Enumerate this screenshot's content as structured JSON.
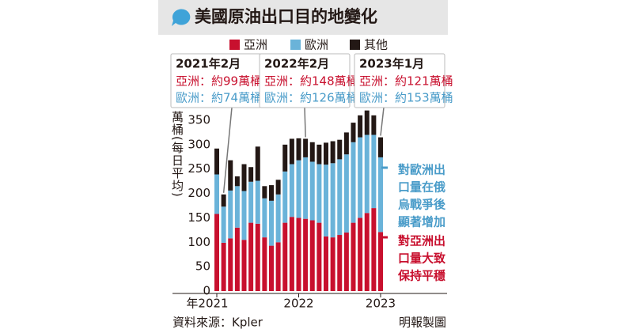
{
  "chart_data": {
    "type": "stacked-bar",
    "title": "美國原油出口目的地變化",
    "y_label": "萬桶(每日平均)",
    "categories": [
      "年2021",
      null,
      null,
      null,
      null,
      null,
      null,
      null,
      null,
      null,
      null,
      null,
      "2022",
      null,
      null,
      null,
      null,
      null,
      null,
      null,
      null,
      null,
      null,
      null,
      "2023"
    ],
    "series": [
      {
        "name": "亞洲",
        "color": "#c8102e",
        "values": [
          158,
          99,
          108,
          130,
          105,
          140,
          138,
          110,
          93,
          100,
          140,
          152,
          150,
          148,
          145,
          140,
          112,
          110,
          115,
          120,
          140,
          150,
          160,
          170,
          121
        ]
      },
      {
        "name": "歐洲",
        "color": "#6ab3d9",
        "values": [
          81,
          74,
          98,
          85,
          100,
          84,
          88,
          80,
          92,
          98,
          105,
          108,
          118,
          126,
          120,
          120,
          147,
          152,
          155,
          160,
          165,
          165,
          160,
          150,
          153
        ]
      },
      {
        "name": "其他",
        "color": "#231815",
        "values": [
          53,
          25,
          62,
          20,
          55,
          30,
          70,
          25,
          32,
          30,
          55,
          52,
          45,
          38,
          40,
          40,
          45,
          45,
          40,
          45,
          40,
          45,
          50,
          40,
          41
        ]
      }
    ],
    "ylim": [
      0,
      350
    ],
    "yticks": [
      0,
      50,
      100,
      150,
      200,
      250,
      300,
      350
    ],
    "callouts": [
      {
        "title": "2021年2月",
        "lines": [
          "亞洲：約99萬桶",
          "歐洲：約74萬桶"
        ]
      },
      {
        "title": "2022年2月",
        "lines": [
          "亞洲：約148萬桶",
          "歐洲：約126萬桶"
        ]
      },
      {
        "title": "2023年1月",
        "lines": [
          "亞洲：約121萬桶",
          "歐洲：約153萬桶"
        ]
      }
    ],
    "annotations": [
      {
        "lines": [
          "對歐洲出",
          "口量在俄",
          "烏戰爭後",
          "顯著增加"
        ],
        "color": "#4a9cc9"
      },
      {
        "lines": [
          "對亞洲出",
          "口量大致",
          "保持平穩"
        ],
        "color": "#c8102e"
      }
    ],
    "source": "資料來源：Kpler",
    "credit": "明報製圖"
  }
}
